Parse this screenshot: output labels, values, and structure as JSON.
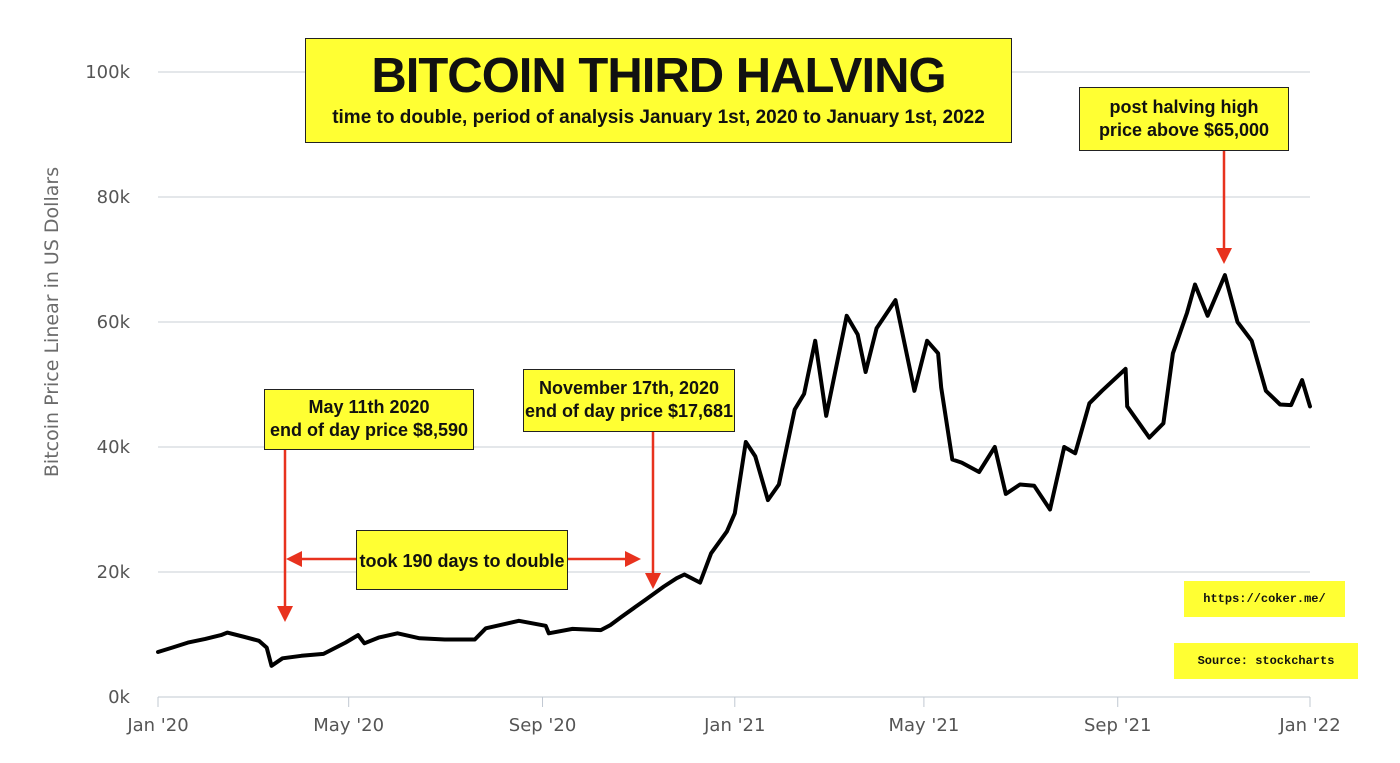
{
  "chart_data": {
    "type": "line",
    "title": "BITCOIN THIRD HALVING",
    "subtitle": "time to double, period of analysis January 1st, 2020 to January 1st, 2022",
    "ylabel": "Bitcoin Price Linear in US Dollars",
    "xlabel": "",
    "x_ticks": [
      {
        "date": "2020-01-01",
        "label": "Jan '20"
      },
      {
        "date": "2020-05-01",
        "label": "May '20"
      },
      {
        "date": "2020-09-01",
        "label": "Sep '20"
      },
      {
        "date": "2021-01-01",
        "label": "Jan '21"
      },
      {
        "date": "2021-05-01",
        "label": "May '21"
      },
      {
        "date": "2021-09-01",
        "label": "Sep '21"
      },
      {
        "date": "2022-01-01",
        "label": "Jan '22"
      }
    ],
    "y_ticks": [
      {
        "value": 0,
        "label": "0k"
      },
      {
        "value": 20000,
        "label": "20k"
      },
      {
        "value": 40000,
        "label": "40k"
      },
      {
        "value": 60000,
        "label": "60k"
      },
      {
        "value": 80000,
        "label": "80k"
      },
      {
        "value": 100000,
        "label": "100k"
      }
    ],
    "xlim": [
      "2020-01-01",
      "2022-01-01"
    ],
    "ylim": [
      0,
      100000
    ],
    "grid": "horizontal",
    "series": [
      {
        "color": "#000000",
        "points": [
          [
            "2020-01-01",
            7200
          ],
          [
            "2020-01-10",
            7900
          ],
          [
            "2020-01-20",
            8700
          ],
          [
            "2020-01-31",
            9300
          ],
          [
            "2020-02-10",
            9900
          ],
          [
            "2020-02-14",
            10300
          ],
          [
            "2020-02-25",
            9600
          ],
          [
            "2020-03-05",
            9000
          ],
          [
            "2020-03-10",
            7900
          ],
          [
            "2020-03-13",
            5000
          ],
          [
            "2020-03-20",
            6200
          ],
          [
            "2020-04-01",
            6600
          ],
          [
            "2020-04-15",
            6900
          ],
          [
            "2020-04-29",
            8700
          ],
          [
            "2020-05-07",
            9900
          ],
          [
            "2020-05-11",
            8590
          ],
          [
            "2020-05-20",
            9500
          ],
          [
            "2020-06-01",
            10200
          ],
          [
            "2020-06-15",
            9400
          ],
          [
            "2020-07-01",
            9200
          ],
          [
            "2020-07-20",
            9200
          ],
          [
            "2020-07-27",
            11000
          ],
          [
            "2020-08-10",
            11800
          ],
          [
            "2020-08-17",
            12200
          ],
          [
            "2020-09-03",
            11400
          ],
          [
            "2020-09-05",
            10200
          ],
          [
            "2020-09-20",
            10900
          ],
          [
            "2020-10-08",
            10700
          ],
          [
            "2020-10-14",
            11500
          ],
          [
            "2020-10-21",
            12800
          ],
          [
            "2020-11-05",
            15500
          ],
          [
            "2020-11-17",
            17681
          ],
          [
            "2020-11-25",
            19000
          ],
          [
            "2020-11-30",
            19600
          ],
          [
            "2020-12-10",
            18300
          ],
          [
            "2020-12-17",
            23000
          ],
          [
            "2020-12-27",
            26500
          ],
          [
            "2021-01-01",
            29400
          ],
          [
            "2021-01-08",
            40800
          ],
          [
            "2021-01-14",
            38500
          ],
          [
            "2021-01-22",
            31500
          ],
          [
            "2021-01-29",
            34000
          ],
          [
            "2021-02-08",
            46000
          ],
          [
            "2021-02-14",
            48500
          ],
          [
            "2021-02-21",
            57000
          ],
          [
            "2021-02-28",
            45000
          ],
          [
            "2021-03-13",
            61000
          ],
          [
            "2021-03-20",
            58000
          ],
          [
            "2021-03-25",
            52000
          ],
          [
            "2021-04-01",
            59000
          ],
          [
            "2021-04-13",
            63500
          ],
          [
            "2021-04-25",
            49000
          ],
          [
            "2021-05-03",
            57000
          ],
          [
            "2021-05-10",
            55000
          ],
          [
            "2021-05-12",
            49500
          ],
          [
            "2021-05-19",
            38000
          ],
          [
            "2021-05-25",
            37500
          ],
          [
            "2021-06-05",
            36000
          ],
          [
            "2021-06-15",
            40000
          ],
          [
            "2021-06-22",
            32500
          ],
          [
            "2021-07-01",
            34000
          ],
          [
            "2021-07-10",
            33800
          ],
          [
            "2021-07-20",
            30000
          ],
          [
            "2021-07-29",
            40000
          ],
          [
            "2021-08-05",
            39000
          ],
          [
            "2021-08-14",
            47000
          ],
          [
            "2021-08-22",
            49000
          ],
          [
            "2021-09-06",
            52500
          ],
          [
            "2021-09-07",
            46500
          ],
          [
            "2021-09-21",
            41500
          ],
          [
            "2021-09-30",
            43800
          ],
          [
            "2021-10-06",
            55000
          ],
          [
            "2021-10-15",
            61500
          ],
          [
            "2021-10-20",
            66000
          ],
          [
            "2021-10-28",
            61000
          ],
          [
            "2021-11-08",
            67500
          ],
          [
            "2021-11-16",
            60000
          ],
          [
            "2021-11-25",
            57000
          ],
          [
            "2021-12-04",
            49000
          ],
          [
            "2021-12-13",
            46800
          ],
          [
            "2021-12-20",
            46700
          ],
          [
            "2021-12-27",
            50700
          ],
          [
            "2022-01-01",
            46500
          ]
        ]
      }
    ]
  },
  "annotations": {
    "may": {
      "line1": "May 11th 2020",
      "line2": "end of day price $8,590"
    },
    "nov": {
      "line1": "November 17th, 2020",
      "line2": "end of day price $17,681"
    },
    "high": {
      "line1": "post halving high",
      "line2": "price above $65,000"
    },
    "double": {
      "text": "took 190 days to double"
    }
  },
  "footer": {
    "url": "https://coker.me/",
    "source": "Source: stockcharts"
  },
  "colors": {
    "highlight": "#ffff33",
    "arrow": "#e8321e",
    "line": "#000000",
    "grid": "#c9cfd6"
  }
}
